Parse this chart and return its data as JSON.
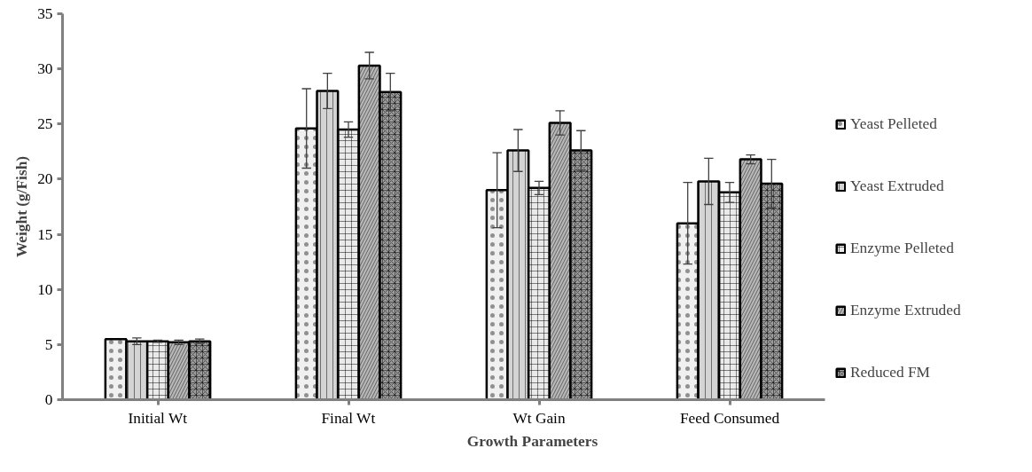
{
  "chart_data": {
    "type": "bar",
    "xlabel": "Growth Parameters",
    "ylabel": "Weight (g/Fish)",
    "categories": [
      "Initial Wt",
      "Final Wt",
      "Wt Gain",
      "Feed Consumed"
    ],
    "series": [
      {
        "name": "Yeast Pelleted",
        "color": "#f0f0f0",
        "values": [
          5.5,
          24.6,
          19.0,
          16.0
        ],
        "errors": [
          null,
          3.6,
          3.4,
          3.7
        ]
      },
      {
        "name": "Yeast Extruded",
        "color": "#d4d4d4",
        "values": [
          5.3,
          28.0,
          22.6,
          19.8
        ],
        "errors": [
          0.3,
          1.6,
          1.9,
          2.1
        ]
      },
      {
        "name": "Enzyme Pelleted",
        "color": "#eaeaea",
        "values": [
          5.3,
          24.5,
          19.2,
          18.8
        ],
        "errors": [
          0.1,
          0.7,
          0.6,
          0.9
        ]
      },
      {
        "name": "Enzyme Extruded",
        "color": "#b8b8b8",
        "values": [
          5.2,
          30.3,
          25.1,
          21.8
        ],
        "errors": [
          0.2,
          1.2,
          1.1,
          0.4
        ]
      },
      {
        "name": "Reduced FM",
        "color": "#9c9c9c",
        "values": [
          5.3,
          27.9,
          22.6,
          19.6
        ],
        "errors": [
          0.2,
          1.7,
          1.8,
          2.2
        ]
      }
    ],
    "ylim": [
      0,
      35
    ],
    "yticks": [
      0,
      5,
      10,
      15,
      20,
      25,
      30,
      35
    ],
    "grid": false,
    "legend": "right"
  }
}
